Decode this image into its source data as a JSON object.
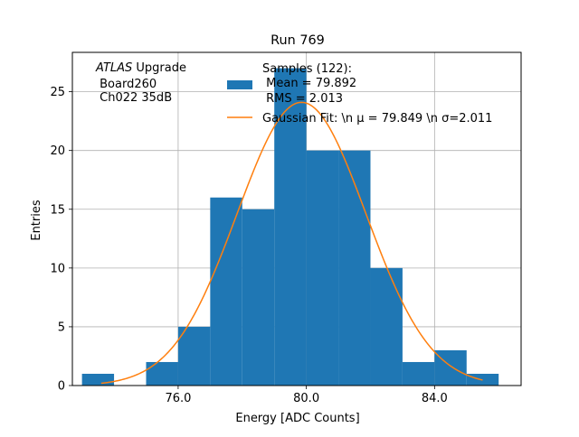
{
  "chart_data": {
    "type": "bar",
    "title": "Run 769",
    "xlabel": "Energy [ADC Counts]",
    "ylabel": "Entries",
    "xlim": [
      72.7,
      86.7
    ],
    "ylim": [
      0,
      28.35
    ],
    "grid": true,
    "x_ticks": [
      76,
      80,
      84
    ],
    "x_tick_labels": [
      "76.0",
      "80.0",
      "84.0"
    ],
    "y_ticks": [
      0,
      5,
      10,
      15,
      20,
      25
    ],
    "y_tick_labels": [
      "0",
      "5",
      "10",
      "15",
      "20",
      "25"
    ],
    "histogram": {
      "bin_edges": [
        73,
        74,
        75,
        76,
        77,
        78,
        79,
        80,
        81,
        82,
        83,
        84,
        85,
        86
      ],
      "counts": [
        1,
        0,
        2,
        5,
        16,
        15,
        27,
        20,
        20,
        10,
        2,
        3,
        1
      ],
      "color": "#1f77b4"
    },
    "gaussian_fit": {
      "amplitude": 24.1,
      "mu": 79.849,
      "sigma": 2.011,
      "x_range": [
        73.6,
        85.5
      ],
      "color": "#ff7f0e"
    },
    "legend": {
      "placement": "top-right",
      "entries": [
        {
          "label_lines": [
            "Samples (122):",
            " Mean = 79.892",
            " RMS = 2.013"
          ],
          "marker": "patch",
          "color": "#1f77b4"
        },
        {
          "label_lines": [
            "Gaussian Fit: \\n μ = 79.849 \\n σ=2.011"
          ],
          "marker": "line",
          "color": "#ff7f0e"
        }
      ]
    },
    "annotation": {
      "italic_part": "ATLAS",
      "line1_rest": " Upgrade",
      "line2": " Board260",
      "line3": " Ch022 35dB"
    }
  }
}
